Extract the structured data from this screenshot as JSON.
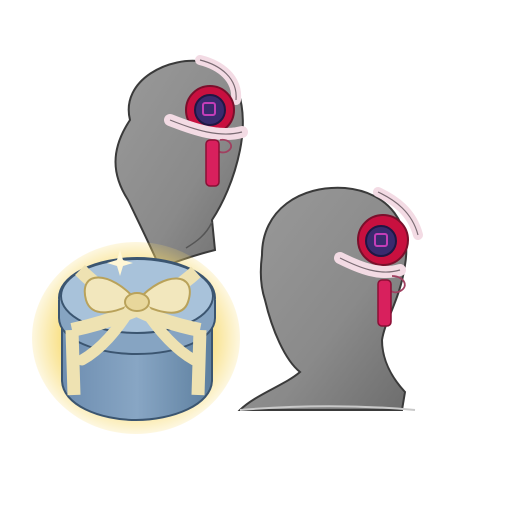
{
  "item": {
    "name": "hair-accessory-item-preview",
    "views": [
      "back-three-quarter-view",
      "side-view"
    ],
    "gift_box": "gift-box-icon"
  },
  "colors": {
    "background": "#ffffff",
    "mannequin_gray": "#8c8c8c",
    "mannequin_shadow": "#6f6f6f",
    "flower_red": "#c8103f",
    "flower_center": "#3a2a6e",
    "ribbon_white": "#f3dbe4",
    "tassel_pink": "#d8205d",
    "box_blue": "#7f9fbf",
    "box_blue_dark": "#5d7f9f",
    "ribbon_gold": "#eee2b2",
    "glow_gold": "#f7d96a"
  }
}
